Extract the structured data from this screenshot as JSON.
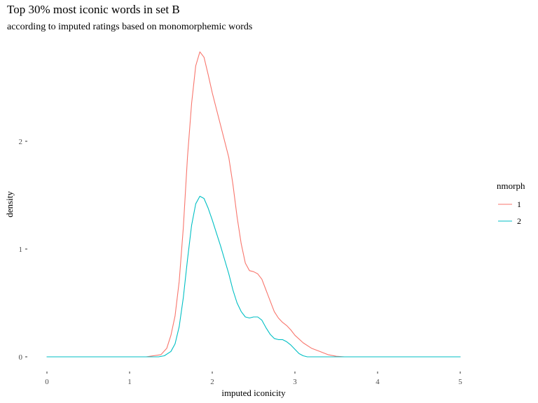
{
  "chart_data": {
    "type": "line",
    "title": "Top 30% most iconic words in set B",
    "subtitle": "according to imputed ratings based on monomorphemic words",
    "xlabel": "imputed iconicity",
    "ylabel": "density",
    "xlim": [
      0,
      5
    ],
    "ylim": [
      0,
      2.85
    ],
    "x_ticks": [
      0,
      1,
      2,
      3,
      4,
      5
    ],
    "y_ticks": [
      0,
      1,
      2
    ],
    "grid": false,
    "legend": {
      "title": "nmorph",
      "position": "right"
    },
    "series": [
      {
        "name": "1",
        "color": "#F8766D",
        "points": [
          [
            0,
            0
          ],
          [
            1.2,
            0
          ],
          [
            1.38,
            0.02
          ],
          [
            1.45,
            0.08
          ],
          [
            1.5,
            0.2
          ],
          [
            1.55,
            0.38
          ],
          [
            1.6,
            0.7
          ],
          [
            1.65,
            1.2
          ],
          [
            1.7,
            1.85
          ],
          [
            1.75,
            2.35
          ],
          [
            1.8,
            2.7
          ],
          [
            1.85,
            2.83
          ],
          [
            1.9,
            2.78
          ],
          [
            1.95,
            2.62
          ],
          [
            2.0,
            2.45
          ],
          [
            2.05,
            2.3
          ],
          [
            2.1,
            2.15
          ],
          [
            2.15,
            2.0
          ],
          [
            2.2,
            1.85
          ],
          [
            2.25,
            1.6
          ],
          [
            2.3,
            1.3
          ],
          [
            2.35,
            1.05
          ],
          [
            2.4,
            0.87
          ],
          [
            2.45,
            0.8
          ],
          [
            2.5,
            0.79
          ],
          [
            2.55,
            0.77
          ],
          [
            2.6,
            0.72
          ],
          [
            2.65,
            0.62
          ],
          [
            2.7,
            0.52
          ],
          [
            2.75,
            0.42
          ],
          [
            2.8,
            0.36
          ],
          [
            2.85,
            0.32
          ],
          [
            2.9,
            0.29
          ],
          [
            2.95,
            0.25
          ],
          [
            3.0,
            0.2
          ],
          [
            3.1,
            0.13
          ],
          [
            3.2,
            0.08
          ],
          [
            3.3,
            0.05
          ],
          [
            3.4,
            0.02
          ],
          [
            3.5,
            0.005
          ],
          [
            3.6,
            0
          ],
          [
            5,
            0
          ]
        ]
      },
      {
        "name": "2",
        "color": "#00BFC4",
        "points": [
          [
            0,
            0
          ],
          [
            1.35,
            0
          ],
          [
            1.42,
            0.01
          ],
          [
            1.5,
            0.05
          ],
          [
            1.55,
            0.12
          ],
          [
            1.6,
            0.28
          ],
          [
            1.65,
            0.55
          ],
          [
            1.7,
            0.9
          ],
          [
            1.75,
            1.22
          ],
          [
            1.8,
            1.42
          ],
          [
            1.85,
            1.49
          ],
          [
            1.9,
            1.47
          ],
          [
            1.95,
            1.38
          ],
          [
            2.0,
            1.27
          ],
          [
            2.05,
            1.15
          ],
          [
            2.1,
            1.03
          ],
          [
            2.15,
            0.9
          ],
          [
            2.2,
            0.77
          ],
          [
            2.25,
            0.62
          ],
          [
            2.3,
            0.5
          ],
          [
            2.35,
            0.42
          ],
          [
            2.4,
            0.37
          ],
          [
            2.45,
            0.36
          ],
          [
            2.5,
            0.37
          ],
          [
            2.55,
            0.37
          ],
          [
            2.6,
            0.34
          ],
          [
            2.65,
            0.27
          ],
          [
            2.7,
            0.21
          ],
          [
            2.75,
            0.17
          ],
          [
            2.8,
            0.16
          ],
          [
            2.85,
            0.16
          ],
          [
            2.9,
            0.14
          ],
          [
            2.95,
            0.11
          ],
          [
            3.0,
            0.07
          ],
          [
            3.05,
            0.03
          ],
          [
            3.1,
            0.01
          ],
          [
            3.15,
            0
          ],
          [
            5,
            0
          ]
        ]
      }
    ]
  }
}
